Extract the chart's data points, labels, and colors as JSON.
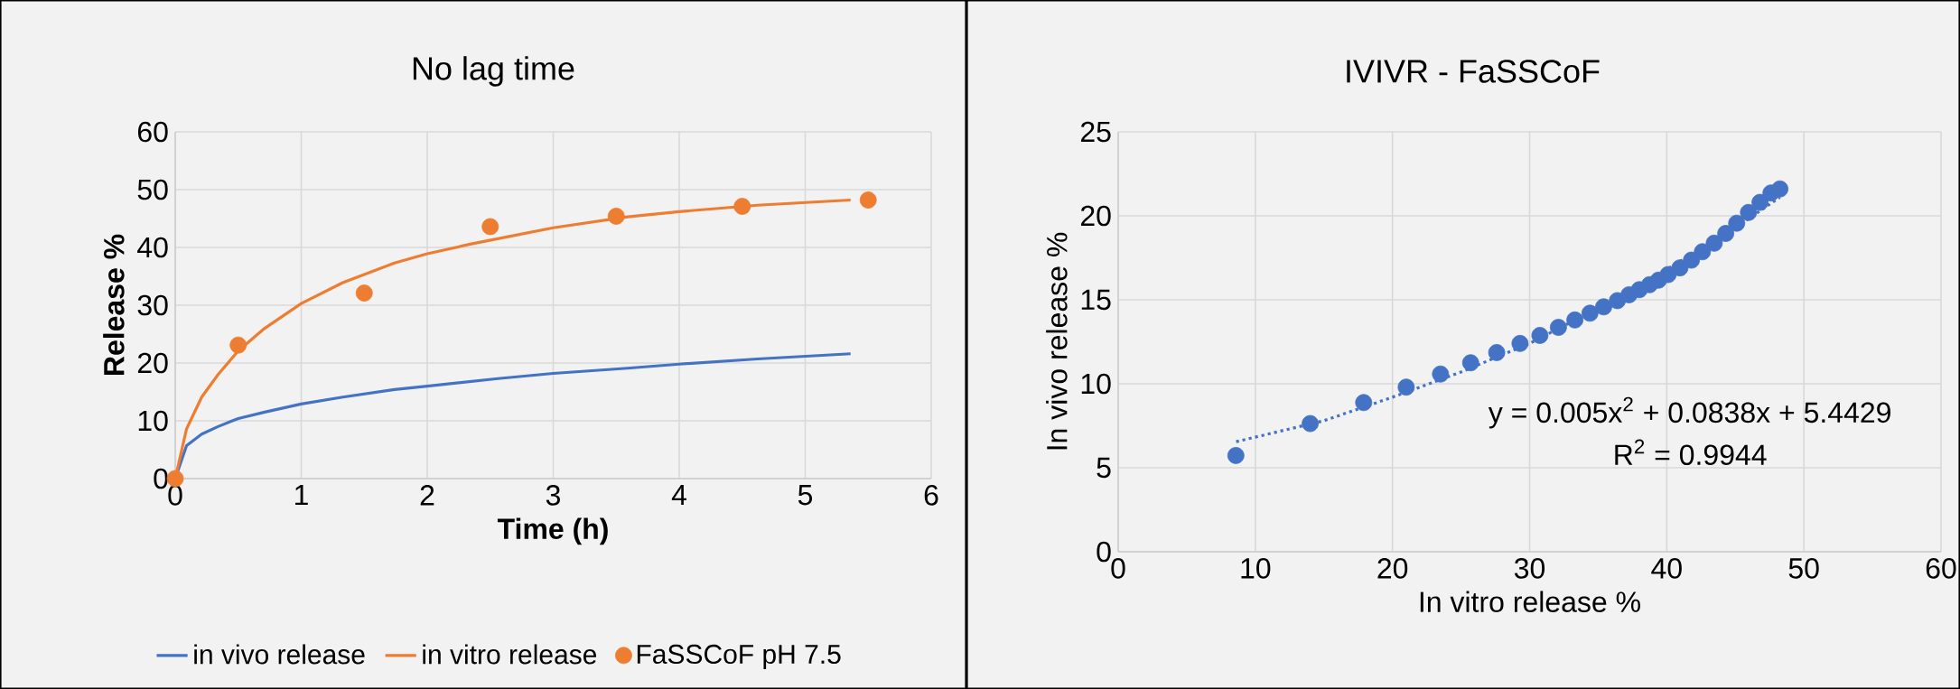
{
  "chart_data": [
    {
      "type": "line",
      "title": "No lag time",
      "xlabel": "**Time (h)**",
      "ylabel": "**Release %**",
      "xlim": [
        0,
        6
      ],
      "xticks": [
        0,
        1,
        2,
        3,
        4,
        5,
        6
      ],
      "ylim": [
        0,
        60
      ],
      "yticks": [
        0,
        10,
        20,
        30,
        40,
        50,
        60
      ],
      "grid": true,
      "legend": "bottom",
      "series": [
        {
          "name": "in vivo release",
          "color": "#4472c4",
          "x": [
            0,
            0.09,
            0.21,
            0.34,
            0.5,
            0.71,
            1.0,
            1.33,
            1.74,
            2.0,
            2.56,
            3.0,
            3.59,
            4.0,
            4.62,
            5.36
          ],
          "values": [
            0,
            5.7,
            7.7,
            9.0,
            10.4,
            11.5,
            12.9,
            14.1,
            15.4,
            16.0,
            17.3,
            18.2,
            19.1,
            19.8,
            20.7,
            21.6
          ]
        },
        {
          "name": "in vitro release",
          "color": "#ed7d31",
          "x": [
            0,
            0.09,
            0.21,
            0.34,
            0.5,
            0.71,
            1.0,
            1.33,
            1.74,
            2.0,
            2.35,
            3.0,
            3.59,
            4.0,
            4.62,
            5.36
          ],
          "values": [
            0,
            8.6,
            14.1,
            18.0,
            22.1,
            26.0,
            30.3,
            33.9,
            37.3,
            38.9,
            40.6,
            43.4,
            45.3,
            46.2,
            47.3,
            48.2
          ]
        },
        {
          "name": "FaSSCoF pH 7.5",
          "type": "scatter",
          "marker": "circle",
          "color": "#ed7d31",
          "x": [
            0,
            0.5,
            1.5,
            2.5,
            3.5,
            4.5,
            5.5
          ],
          "values": [
            0,
            23.1,
            32.1,
            43.6,
            45.4,
            47.1,
            48.2
          ]
        }
      ]
    },
    {
      "type": "scatter",
      "title": "IVIVR - FaSSCoF",
      "xlabel": "In vitro release %",
      "ylabel": "In vivo release %",
      "xlim": [
        0,
        60
      ],
      "xticks": [
        0,
        10,
        20,
        30,
        40,
        50,
        60
      ],
      "ylim": [
        0,
        25
      ],
      "yticks": [
        0,
        5,
        10,
        15,
        20,
        25
      ],
      "grid": true,
      "annotations": [
        "y = 0.005x$^{2}$ + 0.0838x + 5.4429",
        "R$^{2}$ = 0.9944"
      ],
      "series": [
        {
          "marker": "circle",
          "color": "#4472c4",
          "x": [
            8.58,
            14.0,
            17.9,
            21.0,
            23.5,
            25.7,
            27.6,
            29.3,
            30.75,
            32.1,
            33.3,
            34.4,
            35.4,
            36.4,
            37.25,
            38.0,
            38.75,
            39.4,
            40.1,
            40.96,
            41.8,
            42.6,
            43.46,
            44.3,
            45.1,
            45.96,
            46.8,
            47.6,
            48.25
          ],
          "values": [
            5.73,
            7.63,
            8.88,
            9.8,
            10.58,
            11.25,
            11.86,
            12.4,
            12.88,
            13.36,
            13.8,
            14.2,
            14.58,
            14.95,
            15.3,
            15.6,
            15.9,
            16.17,
            16.5,
            16.9,
            17.36,
            17.86,
            18.37,
            18.95,
            19.56,
            20.2,
            20.8,
            21.36,
            21.6
          ]
        },
        {
          "type": "line",
          "line_style": "dotted",
          "color": "#4472c4",
          "x": [
            8.6,
            15,
            20,
            25,
            30,
            35,
            40,
            45,
            48.25
          ],
          "values": [
            6.55,
            7.8,
            9.2,
            10.7,
            12.4,
            14.5,
            16.8,
            19.3,
            21.1
          ]
        }
      ]
    }
  ]
}
